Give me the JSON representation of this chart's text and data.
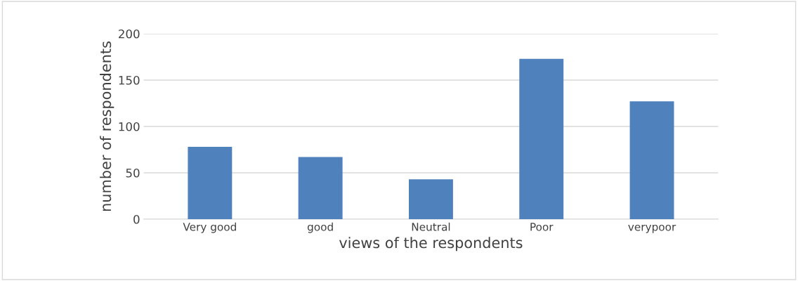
{
  "chart_data": {
    "type": "bar",
    "xlabel": "views of the respondents",
    "ylabel": "number of respondents",
    "categories": [
      "Very good",
      "good",
      "Neutral",
      "Poor",
      "verypoor"
    ],
    "values": [
      78,
      67,
      43,
      173,
      127
    ],
    "color": "#4f81bd",
    "ylim": [
      0,
      200
    ],
    "yticks": [
      0,
      50,
      100,
      150,
      200
    ],
    "grid": "y",
    "legend": false
  }
}
